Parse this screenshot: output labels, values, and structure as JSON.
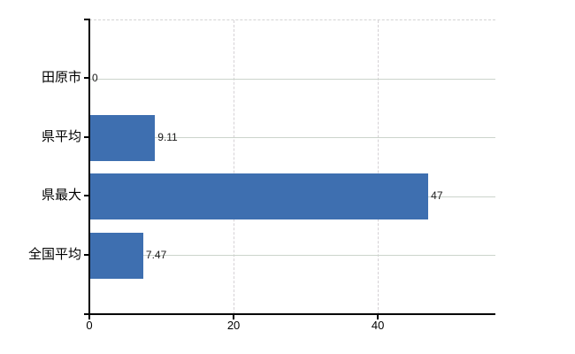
{
  "chart_data": {
    "type": "bar",
    "orientation": "horizontal",
    "categories": [
      "田原市",
      "県平均",
      "県最大",
      "全国平均"
    ],
    "values": [
      0,
      9.11,
      47,
      7.47
    ],
    "value_labels": [
      "0",
      "9.11",
      "47",
      "7.47"
    ],
    "x_ticks": [
      0,
      20,
      40
    ],
    "x_tick_labels": [
      "0",
      "20",
      "40"
    ],
    "xlim": [
      0,
      56.3
    ],
    "bar_color": "#3e6fb0",
    "background_color": "#ffffff",
    "grid": {
      "horizontal_lines": true,
      "vertical_lines": true,
      "horizontal_color": "#ccd4cc",
      "vertical_color": "#d5d1d5",
      "top_border_style": "dashed"
    },
    "legend": "none",
    "title": ""
  }
}
